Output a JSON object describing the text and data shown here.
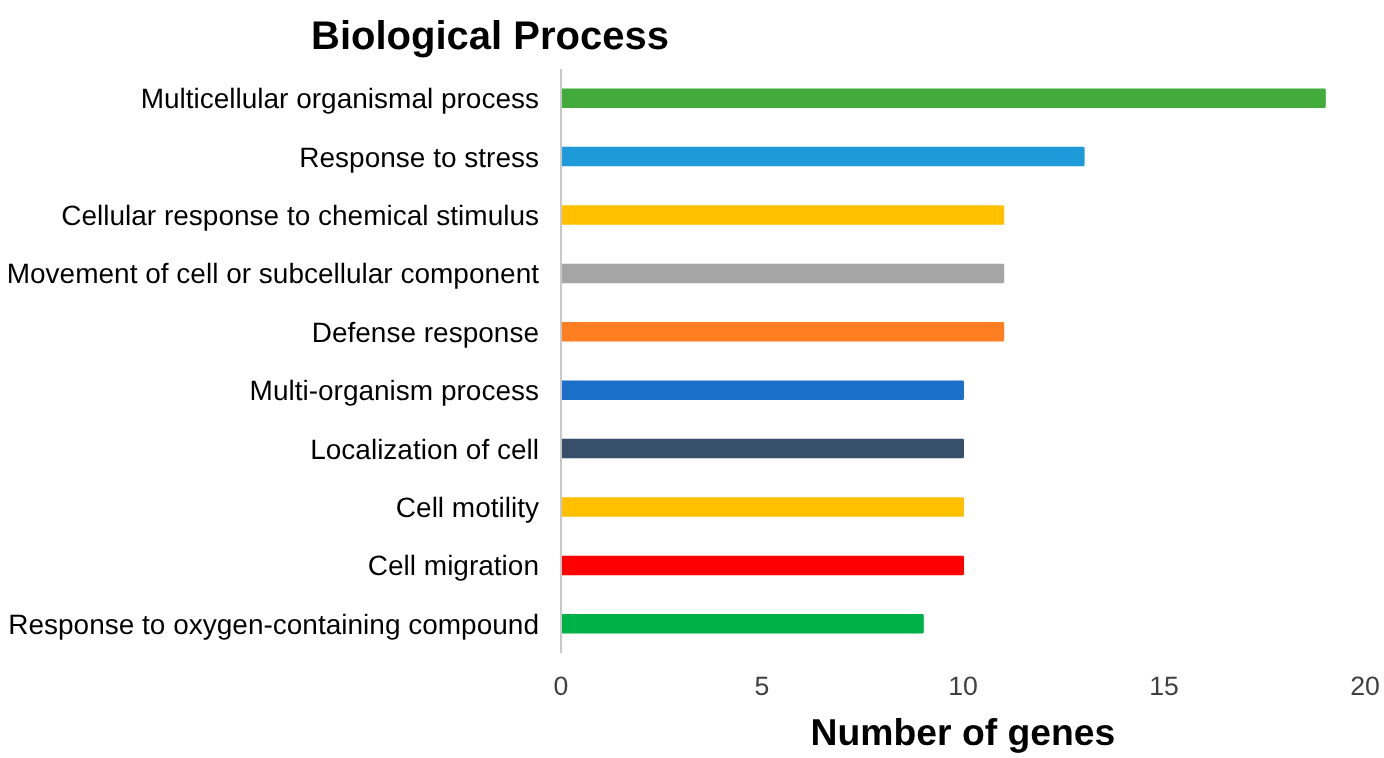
{
  "chart_data": {
    "type": "bar",
    "orientation": "horizontal",
    "title": "Biological Process",
    "xlabel": "Number of genes",
    "categories": [
      "Multicellular organismal process",
      "Response to stress",
      "Cellular response to chemical stimulus",
      "Movement of cell or subcellular component",
      "Defense response",
      "Multi-organism process",
      "Localization of cell",
      "Cell motility",
      "Cell migration",
      "Response to oxygen-containing compound"
    ],
    "values": [
      19,
      13,
      11,
      11,
      11,
      10,
      10,
      10,
      10,
      9
    ],
    "colors": [
      "#43ab3c",
      "#1f9ad8",
      "#ffc000",
      "#a5a5a5",
      "#fe7f22",
      "#1a6fc6",
      "#374f6b",
      "#ffc000",
      "#fe0000",
      "#00b147"
    ],
    "xlim": [
      0,
      20
    ],
    "xticks": [
      0,
      5,
      10,
      15,
      20
    ],
    "grid": false
  }
}
